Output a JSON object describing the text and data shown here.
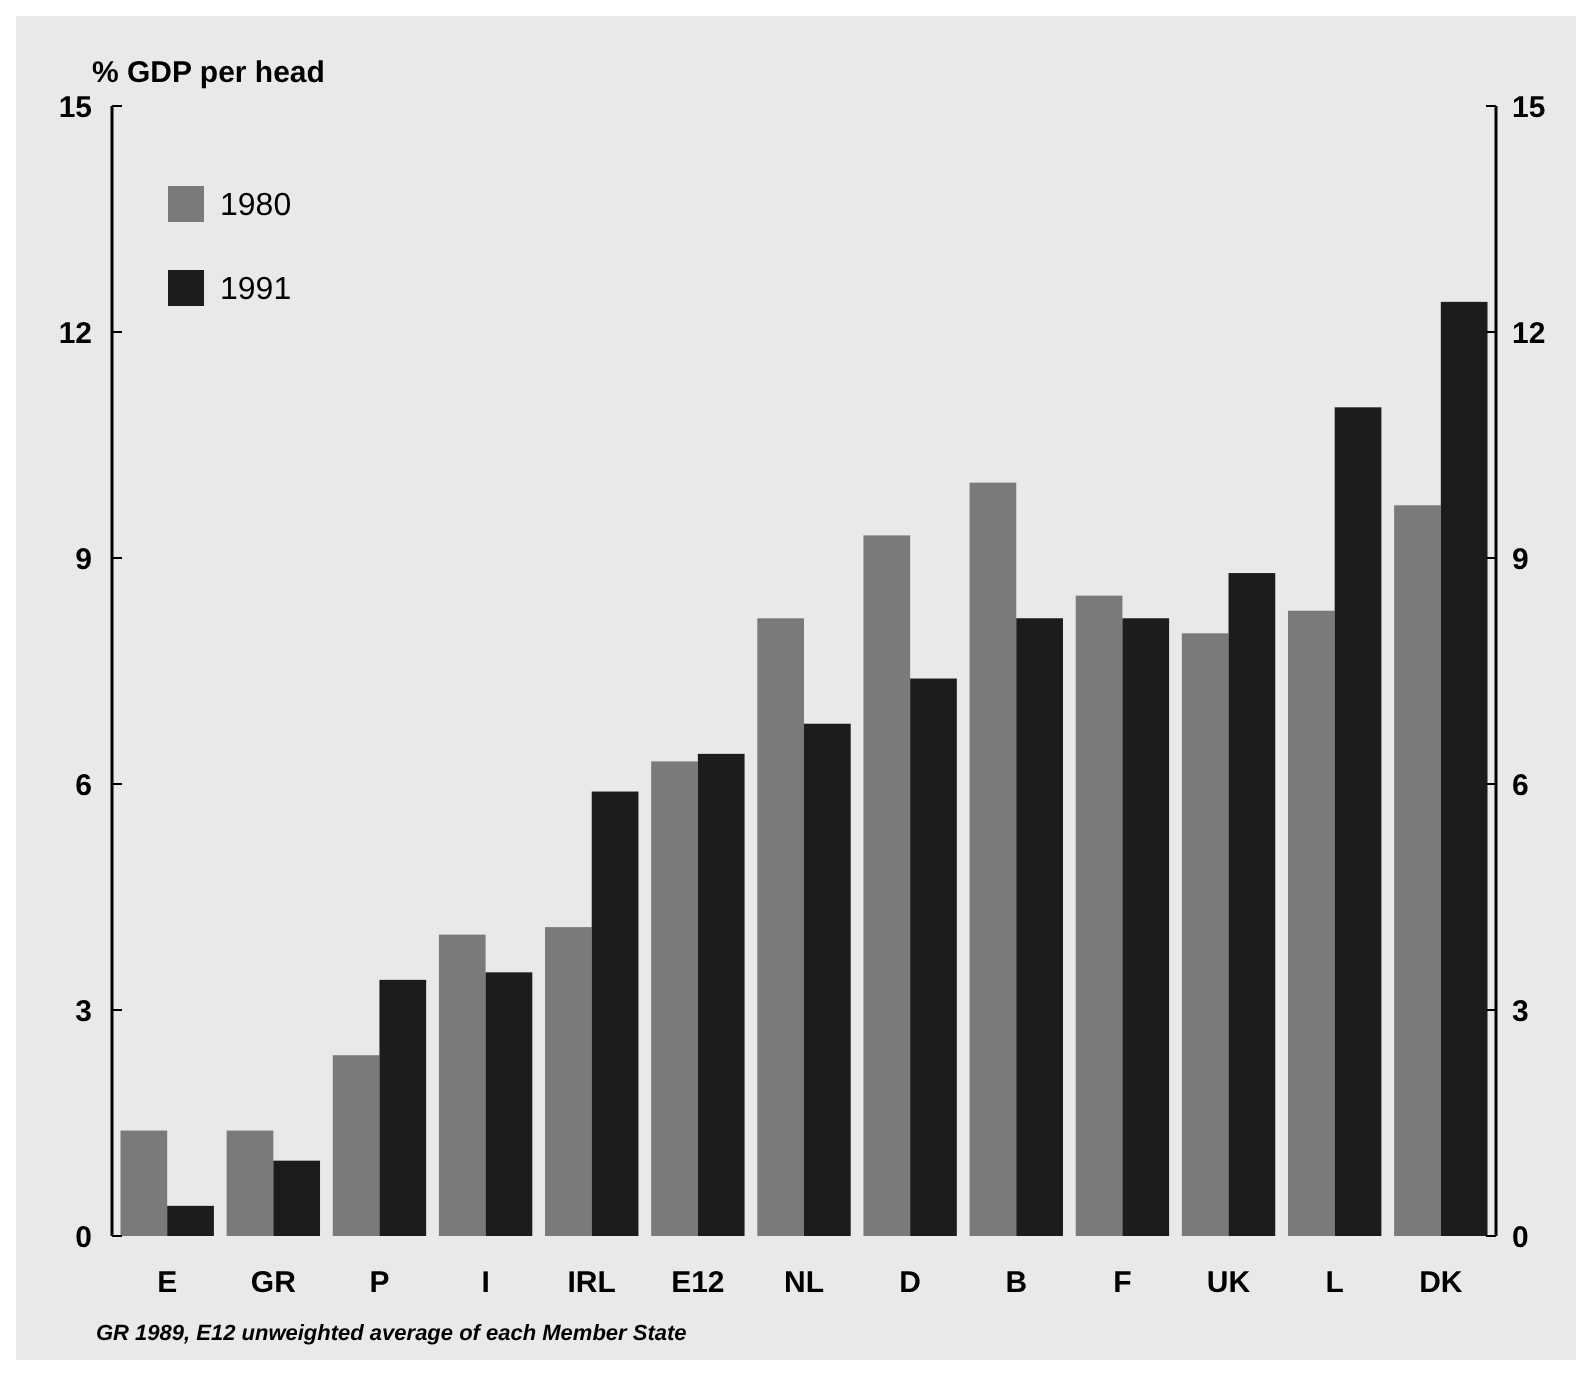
{
  "chart_data": {
    "type": "bar",
    "ylabel": "% GDP per head",
    "categories": [
      "E",
      "GR",
      "P",
      "I",
      "IRL",
      "E12",
      "NL",
      "D",
      "B",
      "F",
      "UK",
      "L",
      "DK"
    ],
    "series": [
      {
        "name": "1980",
        "color": "#7a7a7a",
        "values": [
          1.4,
          1.4,
          2.4,
          4.0,
          4.1,
          6.3,
          8.2,
          9.3,
          10.0,
          8.5,
          8.0,
          8.3,
          9.7
        ]
      },
      {
        "name": "1991",
        "color": "#1c1c1c",
        "values": [
          0.4,
          1.0,
          3.4,
          3.5,
          5.9,
          6.4,
          6.8,
          7.4,
          8.2,
          8.2,
          8.8,
          11.0,
          12.4
        ]
      }
    ],
    "ylim": [
      0,
      15
    ],
    "yticks": [
      0,
      3,
      6,
      9,
      12,
      15
    ],
    "y2lim": [
      0,
      15
    ],
    "y2ticks": [
      0,
      3,
      6,
      9,
      12,
      15
    ],
    "legend": "top left",
    "grid": false,
    "annotations": [
      "GR 1989, E12 unweighted average of each Member State"
    ]
  }
}
